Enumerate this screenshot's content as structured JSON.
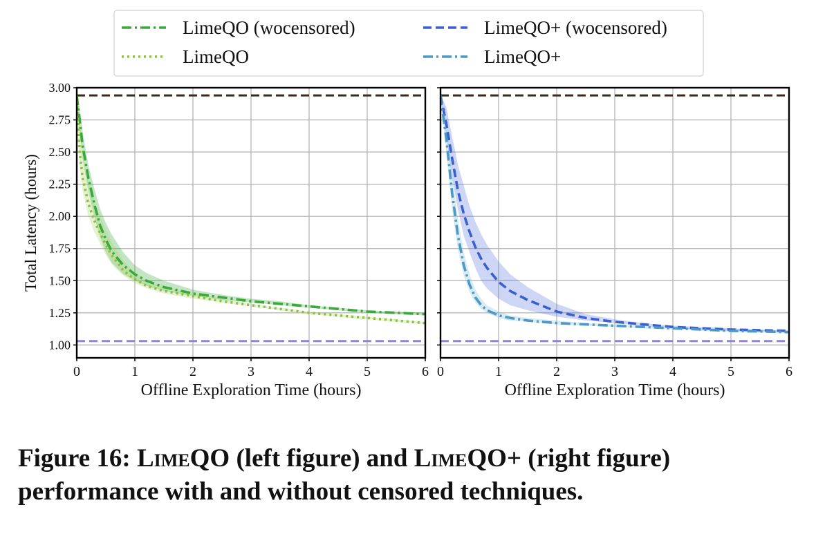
{
  "caption": {
    "label": "Figure 16:",
    "name_a": "LimeQO",
    "mid": "(left figure) and",
    "name_b": "LimeQO+",
    "tail": "(right figure) performance with and without censored techniques."
  },
  "legend": {
    "location": "top-center",
    "entries": [
      {
        "label": "LimeQO (wocensored)",
        "color": "#3aa83a",
        "style": "dashdot"
      },
      {
        "label": "LimeQO+ (wocensored)",
        "color": "#3b5fcf",
        "style": "dashed"
      },
      {
        "label": "LimeQO",
        "color": "#8dbf3f",
        "style": "dotted"
      },
      {
        "label": "LimeQO+",
        "color": "#4b99c4",
        "style": "dashdot"
      }
    ]
  },
  "chart_data": [
    {
      "type": "line",
      "panel": "left",
      "xlabel": "Offline Exploration Time (hours)",
      "ylabel": "Total Latency (hours)",
      "xlim": [
        0,
        6
      ],
      "ylim": [
        0.9,
        3.0
      ],
      "xticks": [
        "0",
        "1",
        "2",
        "3",
        "4",
        "5",
        "6"
      ],
      "yticks": [
        "1.00",
        "1.25",
        "1.50",
        "1.75",
        "2.00",
        "2.25",
        "2.50",
        "2.75",
        "3.00"
      ],
      "grid": true,
      "reference_lines": [
        {
          "y": 2.94,
          "color": "#3a2a1a",
          "style": "dashed"
        },
        {
          "y": 1.03,
          "color": "#8f85c8",
          "style": "dashed"
        }
      ],
      "series": [
        {
          "name": "LimeQO (wocensored)",
          "color": "#3aa83a",
          "style": "dashdot",
          "band_color": "#3aa83a",
          "x": [
            0,
            0.05,
            0.1,
            0.2,
            0.3,
            0.4,
            0.5,
            0.6,
            0.8,
            1.0,
            1.2,
            1.5,
            2.0,
            2.5,
            3.0,
            3.5,
            4.0,
            4.5,
            5.0,
            5.5,
            6.0
          ],
          "y": [
            2.94,
            2.75,
            2.55,
            2.3,
            2.1,
            1.93,
            1.82,
            1.73,
            1.62,
            1.55,
            1.5,
            1.45,
            1.4,
            1.37,
            1.34,
            1.32,
            1.3,
            1.28,
            1.26,
            1.25,
            1.24
          ],
          "lower": [
            2.94,
            2.65,
            2.45,
            2.2,
            2.0,
            1.84,
            1.72,
            1.64,
            1.55,
            1.5,
            1.46,
            1.42,
            1.38,
            1.35,
            1.33,
            1.31,
            1.29,
            1.27,
            1.25,
            1.24,
            1.23
          ],
          "upper": [
            2.94,
            2.85,
            2.66,
            2.4,
            2.22,
            2.06,
            1.95,
            1.86,
            1.72,
            1.62,
            1.56,
            1.5,
            1.43,
            1.39,
            1.36,
            1.34,
            1.31,
            1.29,
            1.27,
            1.26,
            1.25
          ]
        },
        {
          "name": "LimeQO",
          "color": "#8dbf3f",
          "style": "dotted",
          "band_color": "#a6cf6a",
          "x": [
            0,
            0.05,
            0.1,
            0.2,
            0.3,
            0.4,
            0.5,
            0.6,
            0.8,
            1.0,
            1.2,
            1.5,
            2.0,
            2.5,
            3.0,
            3.5,
            4.0,
            4.5,
            5.0,
            5.5,
            6.0
          ],
          "y": [
            2.94,
            2.5,
            2.3,
            2.1,
            1.97,
            1.87,
            1.78,
            1.7,
            1.58,
            1.51,
            1.46,
            1.42,
            1.38,
            1.34,
            1.31,
            1.28,
            1.25,
            1.23,
            1.21,
            1.19,
            1.17
          ],
          "lower": [
            2.94,
            2.4,
            2.2,
            2.0,
            1.88,
            1.79,
            1.7,
            1.63,
            1.54,
            1.48,
            1.44,
            1.4,
            1.36,
            1.33,
            1.3,
            1.27,
            1.24,
            1.22,
            1.2,
            1.18,
            1.16
          ],
          "upper": [
            2.94,
            2.75,
            2.48,
            2.28,
            2.12,
            2.0,
            1.9,
            1.8,
            1.66,
            1.56,
            1.5,
            1.45,
            1.4,
            1.36,
            1.32,
            1.29,
            1.26,
            1.24,
            1.22,
            1.2,
            1.18
          ]
        }
      ]
    },
    {
      "type": "line",
      "panel": "right",
      "xlabel": "Offline Exploration Time (hours)",
      "ylabel": "",
      "xlim": [
        0,
        6
      ],
      "ylim": [
        0.9,
        3.0
      ],
      "xticks": [
        "0",
        "1",
        "2",
        "3",
        "4",
        "5",
        "6"
      ],
      "yticks": [],
      "grid": true,
      "reference_lines": [
        {
          "y": 2.94,
          "color": "#3a2a1a",
          "style": "dashed"
        },
        {
          "y": 1.03,
          "color": "#8f85c8",
          "style": "dashed"
        }
      ],
      "series": [
        {
          "name": "LimeQO+ (wocensored)",
          "color": "#3b5fcf",
          "style": "dashed",
          "band_color": "#5a78dc",
          "x": [
            0,
            0.1,
            0.2,
            0.3,
            0.4,
            0.5,
            0.6,
            0.7,
            0.8,
            1.0,
            1.2,
            1.5,
            2.0,
            2.5,
            3.0,
            3.5,
            4.0,
            4.5,
            5.0,
            5.5,
            6.0
          ],
          "y": [
            2.94,
            2.72,
            2.45,
            2.2,
            2.02,
            1.88,
            1.76,
            1.67,
            1.6,
            1.49,
            1.42,
            1.35,
            1.26,
            1.21,
            1.18,
            1.16,
            1.14,
            1.13,
            1.12,
            1.115,
            1.11
          ],
          "lower": [
            2.94,
            2.62,
            2.3,
            2.05,
            1.85,
            1.72,
            1.6,
            1.5,
            1.44,
            1.36,
            1.31,
            1.27,
            1.22,
            1.19,
            1.17,
            1.15,
            1.13,
            1.12,
            1.11,
            1.105,
            1.1
          ],
          "upper": [
            2.94,
            2.85,
            2.62,
            2.4,
            2.24,
            2.08,
            1.96,
            1.86,
            1.78,
            1.65,
            1.55,
            1.45,
            1.32,
            1.24,
            1.2,
            1.17,
            1.15,
            1.14,
            1.13,
            1.12,
            1.115
          ]
        },
        {
          "name": "LimeQO+",
          "color": "#4b99c4",
          "style": "dashdot",
          "band_color": "#7fbcd8",
          "x": [
            0,
            0.1,
            0.2,
            0.3,
            0.4,
            0.5,
            0.6,
            0.7,
            0.8,
            1.0,
            1.2,
            1.5,
            2.0,
            2.5,
            3.0,
            3.5,
            4.0,
            4.5,
            5.0,
            5.5,
            6.0
          ],
          "y": [
            2.94,
            2.6,
            2.18,
            1.85,
            1.62,
            1.47,
            1.37,
            1.31,
            1.27,
            1.23,
            1.21,
            1.19,
            1.17,
            1.16,
            1.15,
            1.14,
            1.13,
            1.12,
            1.11,
            1.105,
            1.1
          ],
          "lower": [
            2.94,
            2.5,
            2.05,
            1.74,
            1.54,
            1.41,
            1.33,
            1.28,
            1.25,
            1.21,
            1.19,
            1.18,
            1.16,
            1.15,
            1.14,
            1.13,
            1.12,
            1.11,
            1.1,
            1.095,
            1.09
          ],
          "upper": [
            2.94,
            2.72,
            2.32,
            1.98,
            1.72,
            1.55,
            1.43,
            1.36,
            1.31,
            1.26,
            1.23,
            1.21,
            1.19,
            1.17,
            1.16,
            1.15,
            1.14,
            1.13,
            1.12,
            1.115,
            1.11
          ]
        }
      ]
    }
  ]
}
